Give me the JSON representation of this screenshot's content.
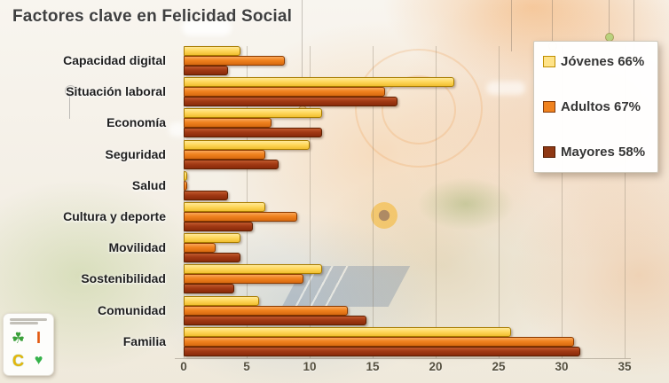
{
  "title": "Factores clave en Felicidad Social",
  "legend": {
    "items": [
      {
        "label": "Jóvenes 66%",
        "fill": "#FFE388",
        "border": "#BF8F00"
      },
      {
        "label": "Adultos 67%",
        "fill": "#F0821E",
        "border": "#843C0C"
      },
      {
        "label": "Mayores 58%",
        "fill": "#8F3814",
        "border": "#541C00"
      }
    ]
  },
  "chart_data": {
    "type": "bar",
    "orientation": "horizontal",
    "title": "Factores clave en Felicidad Social",
    "categories": [
      "Capacidad digital",
      "Situación laboral",
      "Economía",
      "Seguridad",
      "Salud",
      "Cultura y deporte",
      "Movilidad",
      "Sostenibilidad",
      "Comunidad",
      "Familia"
    ],
    "series": [
      {
        "name": "Jóvenes",
        "legend_label": "Jóvenes 66%",
        "fill": "#FFD95F",
        "fill_light": "#FFE896",
        "fill_dark": "#F0BE2E",
        "border": "#A87C00",
        "values": [
          4.5,
          21.5,
          11,
          10,
          0.3,
          6.5,
          4.5,
          11,
          6,
          26
        ]
      },
      {
        "name": "Adultos",
        "legend_label": "Adultos 67%",
        "fill": "#F0821E",
        "fill_light": "#F9A75A",
        "fill_dark": "#D86A10",
        "border": "#8C3B00",
        "values": [
          8,
          16,
          7,
          6.5,
          0.3,
          9,
          2.5,
          9.5,
          13,
          31
        ]
      },
      {
        "name": "Mayores",
        "legend_label": "Mayores 58%",
        "fill": "#A23A14",
        "fill_light": "#C05A2E",
        "fill_dark": "#88290A",
        "border": "#5E1F00",
        "values": [
          3.5,
          17,
          11,
          7.5,
          3.5,
          5.5,
          4.5,
          4,
          14.5,
          31.5
        ]
      }
    ],
    "x_ticks": [
      0,
      5,
      10,
      15,
      20,
      25,
      30,
      35
    ],
    "x_tick_labels": [
      "0",
      "5",
      "10",
      "15",
      "20",
      "25",
      "30",
      "35"
    ],
    "xlim": [
      0,
      35
    ],
    "ylabel": "",
    "xlabel": "",
    "grid": true,
    "legend_position": "top-right"
  },
  "logo": {
    "letter_top": "I",
    "letter_bottom": "C",
    "clover_glyph": "☘",
    "heart_glyph": "♥"
  }
}
